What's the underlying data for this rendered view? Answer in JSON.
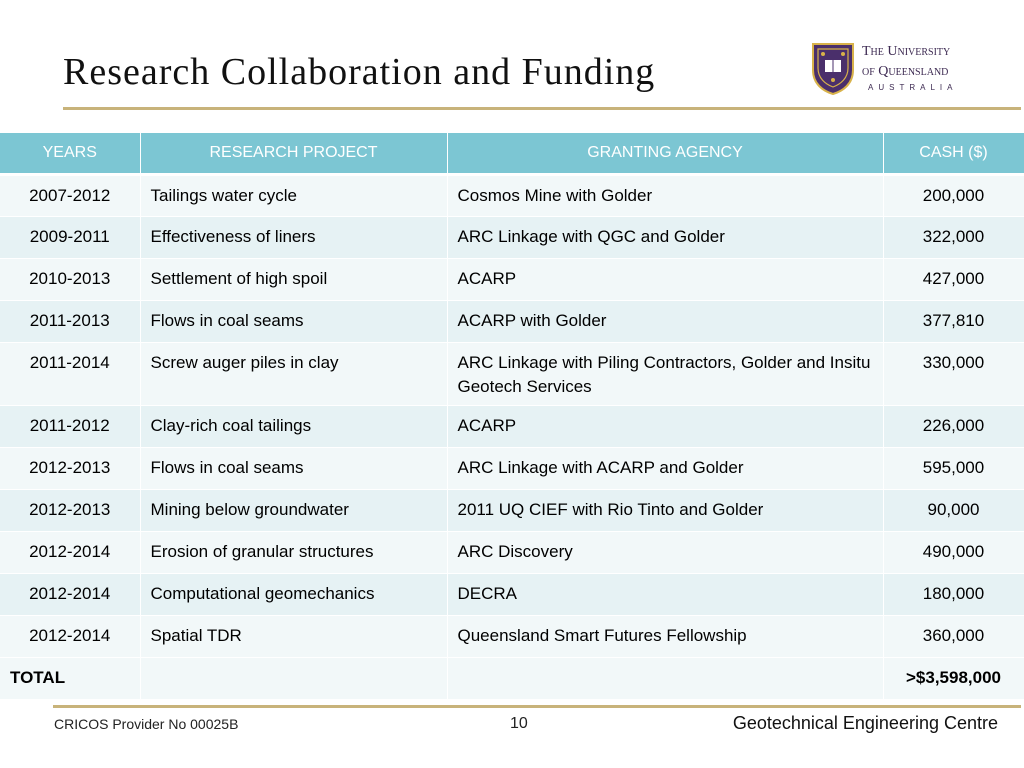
{
  "title": "Research Collaboration and Funding",
  "logo": {
    "line1": "The University",
    "line2": "of Queensland",
    "country": "AUSTRALIA",
    "crest_color": "#4a2f6b",
    "crest_gold": "#d8b24a"
  },
  "table": {
    "headers": [
      "YEARS",
      "RESEARCH PROJECT",
      "GRANTING AGENCY",
      "CASH ($)"
    ],
    "rows": [
      {
        "years": "2007-2012",
        "project": "Tailings water cycle",
        "agency": "Cosmos Mine with Golder",
        "cash": "200,000"
      },
      {
        "years": "2009-2011",
        "project": "Effectiveness of liners",
        "agency": "ARC Linkage with QGC and Golder",
        "cash": "322,000"
      },
      {
        "years": "2010-2013",
        "project": "Settlement of high spoil",
        "agency": "ACARP",
        "cash": "427,000"
      },
      {
        "years": "2011-2013",
        "project": "Flows in coal seams",
        "agency": "ACARP with Golder",
        "cash": "377,810"
      },
      {
        "years": "2011-2014",
        "project": "Screw auger piles in clay",
        "agency": "ARC Linkage with Piling Contractors, Golder and Insitu Geotech Services",
        "cash": "330,000"
      },
      {
        "years": "2011-2012",
        "project": "Clay-rich coal tailings",
        "agency": "ACARP",
        "cash": "226,000"
      },
      {
        "years": "2012-2013",
        "project": "Flows in coal seams",
        "agency": "ARC Linkage with ACARP and Golder",
        "cash": "595,000"
      },
      {
        "years": "2012-2013",
        "project": "Mining below groundwater",
        "agency": "2011 UQ CIEF with Rio Tinto and Golder",
        "cash": "90,000"
      },
      {
        "years": "2012-2014",
        "project": "Erosion of granular structures",
        "agency": "ARC Discovery",
        "cash": "490,000"
      },
      {
        "years": "2012-2014",
        "project": "Computational geomechanics",
        "agency": "DECRA",
        "cash": "180,000"
      },
      {
        "years": "2012-2014",
        "project": "Spatial TDR",
        "agency": "Queensland Smart Futures Fellowship",
        "cash": "360,000"
      }
    ],
    "total_label": "TOTAL",
    "total_value": ">$3,598,000",
    "header_color": "#7cc6d3"
  },
  "footer": {
    "cricos": "CRICOS Provider No 00025B",
    "page": "10",
    "centre": "Geotechnical Engineering Centre"
  }
}
